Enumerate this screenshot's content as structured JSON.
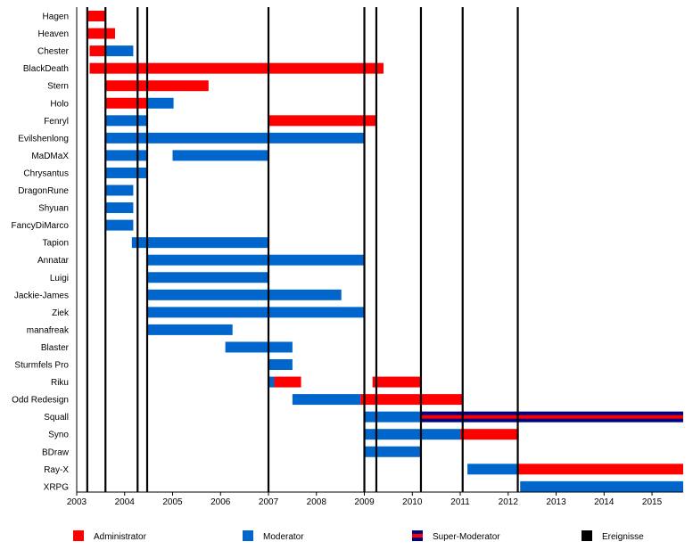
{
  "chart_data": {
    "type": "timeline",
    "x_range": [
      2003.0,
      2015.65
    ],
    "x_ticks": [
      "2003",
      "2004",
      "2005",
      "2006",
      "2007",
      "2008",
      "2009",
      "2010",
      "2011",
      "2012",
      "2013",
      "2014",
      "2015"
    ],
    "colors": {
      "admin": "#ff0000",
      "mod": "#0066cc",
      "super_outer": "#000080",
      "super_inner": "#ff0000",
      "event": "#000000"
    },
    "events": [
      2003.22,
      2003.6,
      2004.27,
      2004.47,
      2007.0,
      2009.0,
      2009.25,
      2010.18,
      2011.05,
      2012.2
    ],
    "legend": [
      {
        "key": "admin",
        "label": "Administrator"
      },
      {
        "key": "mod",
        "label": "Moderator"
      },
      {
        "key": "super",
        "label": "Super-Moderator"
      },
      {
        "key": "event",
        "label": "Ereignisse"
      }
    ],
    "rows": [
      {
        "name": "Hagen",
        "bars": [
          {
            "role": "admin",
            "start": 2003.22,
            "end": 2003.6
          }
        ]
      },
      {
        "name": "Heaven",
        "bars": [
          {
            "role": "admin",
            "start": 2003.22,
            "end": 2003.8
          }
        ]
      },
      {
        "name": "Chester",
        "bars": [
          {
            "role": "admin",
            "start": 2003.27,
            "end": 2003.6
          },
          {
            "role": "mod",
            "start": 2003.6,
            "end": 2004.18
          }
        ]
      },
      {
        "name": "BlackDeath",
        "bars": [
          {
            "role": "admin",
            "start": 2003.27,
            "end": 2009.4
          }
        ]
      },
      {
        "name": "Stern",
        "bars": [
          {
            "role": "admin",
            "start": 2003.6,
            "end": 2005.75
          }
        ]
      },
      {
        "name": "Holo",
        "bars": [
          {
            "role": "admin",
            "start": 2003.6,
            "end": 2004.47
          },
          {
            "role": "mod",
            "start": 2004.47,
            "end": 2005.02
          }
        ]
      },
      {
        "name": "Fenryl",
        "bars": [
          {
            "role": "mod",
            "start": 2003.6,
            "end": 2004.47
          },
          {
            "role": "admin",
            "start": 2007.0,
            "end": 2009.25
          }
        ]
      },
      {
        "name": "Evilshenlong",
        "bars": [
          {
            "role": "mod",
            "start": 2003.6,
            "end": 2009.0
          }
        ]
      },
      {
        "name": "MaDMaX",
        "bars": [
          {
            "role": "mod",
            "start": 2003.6,
            "end": 2004.47
          },
          {
            "role": "mod",
            "start": 2005.0,
            "end": 2007.0
          }
        ]
      },
      {
        "name": "Chrysantus",
        "bars": [
          {
            "role": "mod",
            "start": 2003.6,
            "end": 2004.47
          }
        ]
      },
      {
        "name": "DragonRune",
        "bars": [
          {
            "role": "mod",
            "start": 2003.6,
            "end": 2004.18
          }
        ]
      },
      {
        "name": "Shyuan",
        "bars": [
          {
            "role": "mod",
            "start": 2003.6,
            "end": 2004.18
          }
        ]
      },
      {
        "name": "FancyDiMarco",
        "bars": [
          {
            "role": "mod",
            "start": 2003.6,
            "end": 2004.18
          }
        ]
      },
      {
        "name": "Tapion",
        "bars": [
          {
            "role": "mod",
            "start": 2004.15,
            "end": 2007.0
          }
        ]
      },
      {
        "name": "Annatar",
        "bars": [
          {
            "role": "mod",
            "start": 2004.47,
            "end": 2009.0
          }
        ]
      },
      {
        "name": "Luigi",
        "bars": [
          {
            "role": "mod",
            "start": 2004.47,
            "end": 2007.0
          }
        ]
      },
      {
        "name": "Jackie-James",
        "bars": [
          {
            "role": "mod",
            "start": 2004.47,
            "end": 2008.52
          }
        ]
      },
      {
        "name": "Ziek",
        "bars": [
          {
            "role": "mod",
            "start": 2004.47,
            "end": 2009.0
          }
        ]
      },
      {
        "name": "manafreak",
        "bars": [
          {
            "role": "mod",
            "start": 2004.47,
            "end": 2006.25
          }
        ]
      },
      {
        "name": "Blaster",
        "bars": [
          {
            "role": "mod",
            "start": 2006.1,
            "end": 2007.5
          }
        ]
      },
      {
        "name": "Sturmfels Pro",
        "bars": [
          {
            "role": "mod",
            "start": 2007.0,
            "end": 2007.5
          }
        ]
      },
      {
        "name": "Riku",
        "bars": [
          {
            "role": "mod",
            "start": 2007.0,
            "end": 2007.12
          },
          {
            "role": "admin",
            "start": 2007.12,
            "end": 2007.68
          },
          {
            "role": "admin",
            "start": 2009.17,
            "end": 2010.18
          }
        ]
      },
      {
        "name": "Odd Redesign",
        "bars": [
          {
            "role": "mod",
            "start": 2007.5,
            "end": 2008.92
          },
          {
            "role": "admin",
            "start": 2008.92,
            "end": 2011.05
          }
        ]
      },
      {
        "name": "Squall",
        "bars": [
          {
            "role": "mod",
            "start": 2009.0,
            "end": 2010.18
          },
          {
            "role": "super",
            "start": 2010.18,
            "end": 2015.65
          }
        ]
      },
      {
        "name": "Syno",
        "bars": [
          {
            "role": "mod",
            "start": 2009.0,
            "end": 2011.0
          },
          {
            "role": "admin",
            "start": 2011.0,
            "end": 2012.22
          }
        ]
      },
      {
        "name": "BDraw",
        "bars": [
          {
            "role": "mod",
            "start": 2009.0,
            "end": 2010.18
          }
        ]
      },
      {
        "name": "Ray-X",
        "bars": [
          {
            "role": "mod",
            "start": 2011.15,
            "end": 2012.2
          },
          {
            "role": "admin",
            "start": 2012.2,
            "end": 2015.65
          }
        ]
      },
      {
        "name": "XRPG",
        "bars": [
          {
            "role": "mod",
            "start": 2012.25,
            "end": 2015.65
          }
        ]
      }
    ]
  }
}
